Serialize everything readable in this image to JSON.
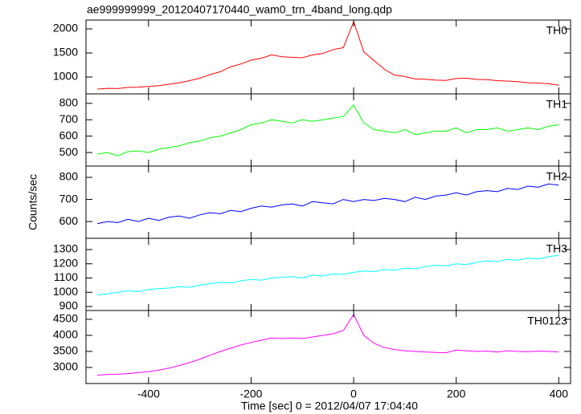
{
  "chart_data": [
    {
      "type": "line",
      "title": "ae999999999_20120407170440_wam0_trn_4band_long.qdp",
      "x": [
        -500,
        -480,
        -460,
        -440,
        -420,
        -400,
        -380,
        -360,
        -340,
        -320,
        -300,
        -280,
        -260,
        -240,
        -220,
        -200,
        -180,
        -160,
        -140,
        -120,
        -100,
        -80,
        -60,
        -40,
        -20,
        0,
        20,
        40,
        60,
        80,
        100,
        120,
        140,
        160,
        180,
        200,
        220,
        240,
        260,
        280,
        300,
        320,
        340,
        360,
        380,
        400
      ],
      "series": [
        {
          "name": "TH0",
          "color": "#ff0000",
          "values": [
            750,
            765,
            760,
            785,
            790,
            805,
            820,
            850,
            880,
            925,
            975,
            1050,
            1110,
            1210,
            1270,
            1350,
            1390,
            1460,
            1420,
            1410,
            1400,
            1460,
            1490,
            1570,
            1610,
            2150,
            1520,
            1340,
            1160,
            1040,
            1010,
            960,
            955,
            935,
            930,
            970,
            975,
            950,
            945,
            925,
            915,
            905,
            880,
            875,
            860,
            830
          ]
        }
      ],
      "xlim": [
        -522,
        423
      ],
      "xticks": [
        -400,
        -200,
        0,
        200,
        400
      ],
      "ylim": [
        650,
        2183
      ],
      "yticks": [
        1000,
        1500,
        2000
      ]
    },
    {
      "type": "line",
      "x": [
        -500,
        -480,
        -460,
        -440,
        -420,
        -400,
        -380,
        -360,
        -340,
        -320,
        -300,
        -280,
        -260,
        -240,
        -220,
        -200,
        -180,
        -160,
        -140,
        -120,
        -100,
        -80,
        -60,
        -40,
        -20,
        0,
        20,
        40,
        60,
        80,
        100,
        120,
        140,
        160,
        180,
        200,
        220,
        240,
        260,
        280,
        300,
        320,
        340,
        360,
        380,
        400
      ],
      "series": [
        {
          "name": "TH1",
          "color": "#00ff00",
          "values": [
            490,
            500,
            480,
            505,
            510,
            500,
            520,
            530,
            540,
            560,
            570,
            590,
            600,
            620,
            640,
            670,
            680,
            700,
            690,
            680,
            700,
            690,
            700,
            710,
            720,
            790,
            680,
            640,
            630,
            620,
            640,
            610,
            620,
            630,
            630,
            650,
            620,
            640,
            640,
            650,
            630,
            640,
            650,
            640,
            660,
            670
          ]
        }
      ],
      "xlim": [
        -522,
        423
      ],
      "xticks": [
        -400,
        -200,
        0,
        200,
        400
      ],
      "ylim": [
        417,
        858
      ],
      "yticks": [
        500,
        600,
        700,
        800
      ]
    },
    {
      "type": "line",
      "x": [
        -500,
        -480,
        -460,
        -440,
        -420,
        -400,
        -380,
        -360,
        -340,
        -320,
        -300,
        -280,
        -260,
        -240,
        -220,
        -200,
        -180,
        -160,
        -140,
        -120,
        -100,
        -80,
        -60,
        -40,
        -20,
        0,
        20,
        40,
        60,
        80,
        100,
        120,
        140,
        160,
        180,
        200,
        220,
        240,
        260,
        280,
        300,
        320,
        340,
        360,
        380,
        400
      ],
      "series": [
        {
          "name": "TH2",
          "color": "#0000ff",
          "values": [
            590,
            600,
            595,
            610,
            600,
            615,
            605,
            620,
            625,
            615,
            630,
            640,
            635,
            650,
            645,
            660,
            670,
            665,
            675,
            680,
            670,
            690,
            685,
            680,
            700,
            690,
            700,
            695,
            705,
            700,
            690,
            710,
            700,
            715,
            720,
            730,
            720,
            735,
            740,
            735,
            750,
            745,
            760,
            755,
            770,
            765
          ]
        }
      ],
      "xlim": [
        -522,
        423
      ],
      "xticks": [
        -400,
        -200,
        0,
        200,
        400
      ],
      "ylim": [
        524,
        851
      ],
      "yticks": [
        600,
        700,
        800
      ]
    },
    {
      "type": "line",
      "x": [
        -500,
        -480,
        -460,
        -440,
        -420,
        -400,
        -380,
        -360,
        -340,
        -320,
        -300,
        -280,
        -260,
        -240,
        -220,
        -200,
        -180,
        -160,
        -140,
        -120,
        -100,
        -80,
        -60,
        -40,
        -20,
        0,
        20,
        40,
        60,
        80,
        100,
        120,
        140,
        160,
        180,
        200,
        220,
        240,
        260,
        280,
        300,
        320,
        340,
        360,
        380,
        400
      ],
      "series": [
        {
          "name": "TH3",
          "color": "#00ffff",
          "values": [
            980,
            990,
            1000,
            1010,
            1005,
            1020,
            1025,
            1030,
            1040,
            1035,
            1050,
            1060,
            1070,
            1065,
            1080,
            1090,
            1085,
            1100,
            1105,
            1110,
            1100,
            1120,
            1115,
            1130,
            1125,
            1140,
            1150,
            1145,
            1160,
            1155,
            1170,
            1165,
            1180,
            1190,
            1185,
            1200,
            1195,
            1210,
            1220,
            1215,
            1230,
            1225,
            1240,
            1235,
            1250,
            1260
          ]
        }
      ],
      "xlim": [
        -522,
        423
      ],
      "xticks": [
        -400,
        -200,
        0,
        200,
        400
      ],
      "ylim": [
        872,
        1379
      ],
      "yticks": [
        900,
        1000,
        1100,
        1200,
        1300
      ]
    },
    {
      "type": "line",
      "xlabel": "Time [sec] 0 = 2012/04/07 17:04:40",
      "ylabel": "Counts/sec",
      "x": [
        -500,
        -480,
        -460,
        -440,
        -420,
        -400,
        -380,
        -360,
        -340,
        -320,
        -300,
        -280,
        -260,
        -240,
        -220,
        -200,
        -180,
        -160,
        -140,
        -120,
        -100,
        -80,
        -60,
        -40,
        -20,
        0,
        20,
        40,
        60,
        80,
        100,
        120,
        140,
        160,
        180,
        200,
        220,
        240,
        260,
        280,
        300,
        320,
        340,
        360,
        380,
        400
      ],
      "series": [
        {
          "name": "TH0123",
          "color": "#ff00ff",
          "values": [
            2760,
            2780,
            2790,
            2810,
            2840,
            2870,
            2920,
            2980,
            3060,
            3150,
            3260,
            3380,
            3500,
            3600,
            3700,
            3780,
            3850,
            3920,
            3900,
            3920,
            3900,
            3950,
            4000,
            4050,
            4150,
            4650,
            4000,
            3750,
            3620,
            3560,
            3520,
            3500,
            3480,
            3470,
            3460,
            3540,
            3520,
            3500,
            3510,
            3480,
            3520,
            3500,
            3490,
            3510,
            3500,
            3480
          ]
        }
      ],
      "xlim": [
        -522,
        423
      ],
      "xticks": [
        -400,
        -200,
        0,
        200,
        400
      ],
      "ylim": [
        2500,
        4775
      ],
      "yticks": [
        3000,
        3500,
        4000,
        4500
      ]
    }
  ]
}
